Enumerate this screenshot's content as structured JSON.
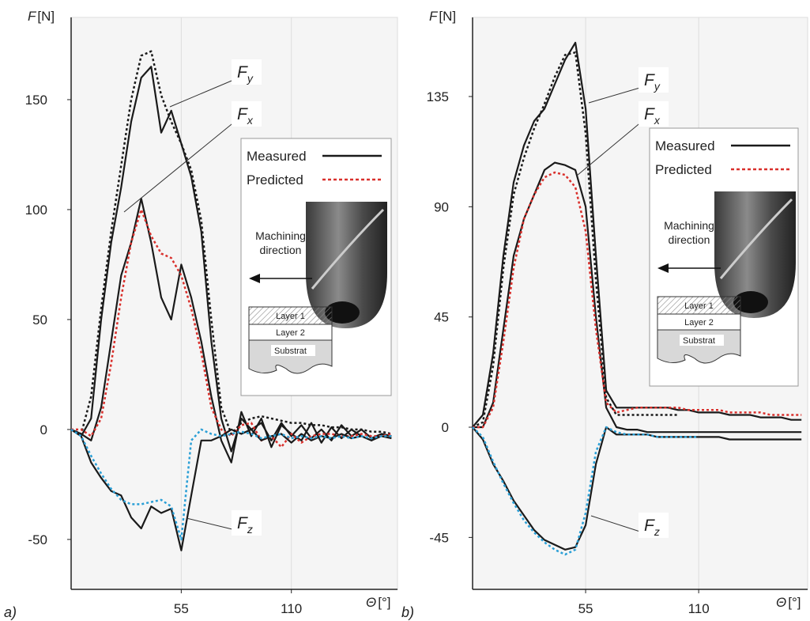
{
  "chart_data": [
    {
      "type": "line",
      "panel_label": "a)",
      "ylabel_symbol": "F",
      "ylabel_unit": "[N]",
      "xlabel_symbol": "Θ",
      "xlabel_unit": "[°]",
      "xlim": [
        0,
        163
      ],
      "ylim": [
        -72.7,
        187.4
      ],
      "xticks": [
        55,
        110
      ],
      "yticks": [
        -50,
        0,
        50,
        100,
        150
      ],
      "grid": true,
      "x": [
        0,
        5,
        10,
        15,
        20,
        25,
        30,
        35,
        40,
        45,
        50,
        55,
        60,
        65,
        70,
        75,
        80,
        85,
        90,
        95,
        100,
        105,
        110,
        115,
        120,
        125,
        130,
        135,
        140,
        145,
        150,
        155,
        160
      ],
      "series": [
        {
          "color": "#1a1a1a",
          "dash": false,
          "values": [
            0,
            -3,
            5,
            50,
            85,
            110,
            140,
            160,
            165,
            135,
            145,
            130,
            115,
            90,
            40,
            5,
            -10,
            5,
            0,
            3,
            -5,
            3,
            -3,
            2,
            -4,
            0,
            -5,
            2,
            -3,
            0,
            -4,
            -2,
            -3
          ]
        },
        {
          "color": "#1a1a1a",
          "dash": true,
          "values": [
            0,
            -2,
            15,
            55,
            90,
            120,
            150,
            170,
            172,
            152,
            140,
            130,
            118,
            95,
            50,
            10,
            -2,
            3,
            5,
            6,
            5,
            4,
            3,
            3,
            2,
            2,
            1,
            1,
            0,
            0,
            -1,
            -1,
            -2
          ]
        },
        {
          "color": "#1a1a1a",
          "dash": false,
          "values": [
            0,
            -2,
            -5,
            10,
            40,
            70,
            85,
            105,
            85,
            60,
            50,
            75,
            60,
            40,
            15,
            -5,
            -15,
            8,
            -3,
            5,
            -8,
            2,
            -2,
            -5,
            3,
            -6,
            1,
            -4,
            0,
            -3,
            -5,
            -2,
            -3
          ]
        },
        {
          "color": "#d9302c",
          "dash": true,
          "values": [
            0,
            0,
            -3,
            5,
            30,
            60,
            85,
            100,
            88,
            80,
            78,
            70,
            55,
            35,
            10,
            0,
            -3,
            2,
            3,
            -5,
            -3,
            -8,
            -2,
            -6,
            -3,
            -2,
            -2,
            -3,
            -3,
            -2,
            -3,
            -3,
            -2
          ]
        },
        {
          "color": "#1a1a1a",
          "dash": false,
          "values": [
            0,
            -3,
            -15,
            -22,
            -28,
            -30,
            -40,
            -45,
            -35,
            -38,
            -36,
            -55,
            -30,
            -5,
            -5,
            -3,
            0,
            -2,
            0,
            -5,
            -3,
            -2,
            -6,
            -2,
            -5,
            -3,
            -4,
            -2,
            -4,
            -3,
            -5,
            -3,
            -4
          ]
        },
        {
          "color": "#2a9fd6",
          "dash": true,
          "values": [
            0,
            -3,
            -12,
            -20,
            -27,
            -32,
            -34,
            -34,
            -33,
            -32,
            -35,
            -50,
            -5,
            0,
            -2,
            -3,
            -2,
            -1,
            -2,
            -4,
            -3,
            -2,
            -4,
            -3,
            -4,
            -3,
            -4,
            -3,
            -4,
            -3,
            -4,
            -3,
            -3
          ]
        }
      ],
      "annotations": [
        {
          "text": "F",
          "sub": "y"
        },
        {
          "text": "F",
          "sub": "x"
        },
        {
          "text": "F",
          "sub": "z"
        }
      ],
      "legend": [
        {
          "name": "Measured",
          "color": "#1a1a1a",
          "dash": false
        },
        {
          "name": "Predicted",
          "color": "#d9302c",
          "dash": true
        }
      ],
      "inset": {
        "direction": [
          "Machining",
          "direction"
        ],
        "layers": [
          "Layer 1",
          "Layer 2",
          "Substrat"
        ]
      }
    },
    {
      "type": "line",
      "panel_label": "b)",
      "ylabel_symbol": "F",
      "ylabel_unit": "[N]",
      "xlabel_symbol": "Θ",
      "xlabel_unit": "[°]",
      "xlim": [
        0,
        163
      ],
      "ylim": [
        -66.2,
        167.3
      ],
      "xticks": [
        55,
        110
      ],
      "yticks": [
        -45,
        0,
        45,
        90,
        135
      ],
      "grid": true,
      "x": [
        0,
        5,
        10,
        15,
        20,
        25,
        30,
        35,
        40,
        45,
        50,
        55,
        60,
        65,
        70,
        75,
        80,
        85,
        90,
        95,
        100,
        105,
        110,
        115,
        120,
        125,
        130,
        135,
        140,
        145,
        150,
        155,
        160
      ],
      "series": [
        {
          "color": "#1a1a1a",
          "dash": false,
          "values": [
            0,
            5,
            30,
            70,
            100,
            115,
            125,
            130,
            140,
            150,
            157,
            130,
            70,
            15,
            8,
            8,
            8,
            8,
            8,
            8,
            7,
            7,
            6,
            6,
            6,
            5,
            5,
            5,
            4,
            4,
            4,
            3,
            3
          ]
        },
        {
          "color": "#1a1a1a",
          "dash": true,
          "values": [
            0,
            2,
            25,
            65,
            95,
            110,
            122,
            132,
            143,
            152,
            153,
            120,
            60,
            12,
            5,
            5,
            5,
            5,
            5,
            5,
            5,
            null,
            null,
            null,
            null,
            null,
            null,
            null,
            null,
            null,
            null,
            null,
            null
          ]
        },
        {
          "color": "#1a1a1a",
          "dash": false,
          "values": [
            0,
            0,
            10,
            40,
            70,
            85,
            95,
            105,
            108,
            107,
            105,
            90,
            45,
            8,
            0,
            -1,
            -1,
            -2,
            -2,
            -2,
            -2,
            -2,
            -2,
            -2,
            -2,
            -2,
            -2,
            -2,
            -2,
            -2,
            -2,
            -2,
            -2
          ]
        },
        {
          "color": "#d9302c",
          "dash": true,
          "values": [
            0,
            0,
            8,
            35,
            65,
            85,
            95,
            102,
            104,
            103,
            98,
            80,
            40,
            10,
            6,
            7,
            8,
            8,
            8,
            8,
            8,
            7,
            7,
            7,
            7,
            6,
            6,
            6,
            6,
            5,
            5,
            5,
            5
          ]
        },
        {
          "color": "#1a1a1a",
          "dash": false,
          "values": [
            0,
            -5,
            -15,
            -22,
            -30,
            -36,
            -42,
            -46,
            -48,
            -50,
            -49,
            -40,
            -15,
            0,
            -3,
            -3,
            -3,
            -3,
            -4,
            -4,
            -4,
            -4,
            -4,
            -4,
            -4,
            -5,
            -5,
            -5,
            -5,
            -5,
            -5,
            -5,
            -5
          ]
        },
        {
          "color": "#2a9fd6",
          "dash": true,
          "values": [
            0,
            -4,
            -14,
            -23,
            -31,
            -38,
            -43,
            -47,
            -50,
            -52,
            -50,
            -35,
            -10,
            0,
            -2,
            -3,
            -3,
            -3,
            -4,
            -4,
            -4,
            -4,
            -4,
            null,
            null,
            null,
            null,
            null,
            null,
            null,
            null,
            null,
            null
          ]
        }
      ],
      "annotations": [
        {
          "text": "F",
          "sub": "y"
        },
        {
          "text": "F",
          "sub": "x"
        },
        {
          "text": "F",
          "sub": "z"
        }
      ],
      "legend": [
        {
          "name": "Measured",
          "color": "#1a1a1a",
          "dash": false
        },
        {
          "name": "Predicted",
          "color": "#d9302c",
          "dash": true
        }
      ],
      "inset": {
        "direction": [
          "Machining",
          "direction"
        ],
        "layers": [
          "Layer 1",
          "Layer 2",
          "Substrat"
        ]
      }
    }
  ]
}
